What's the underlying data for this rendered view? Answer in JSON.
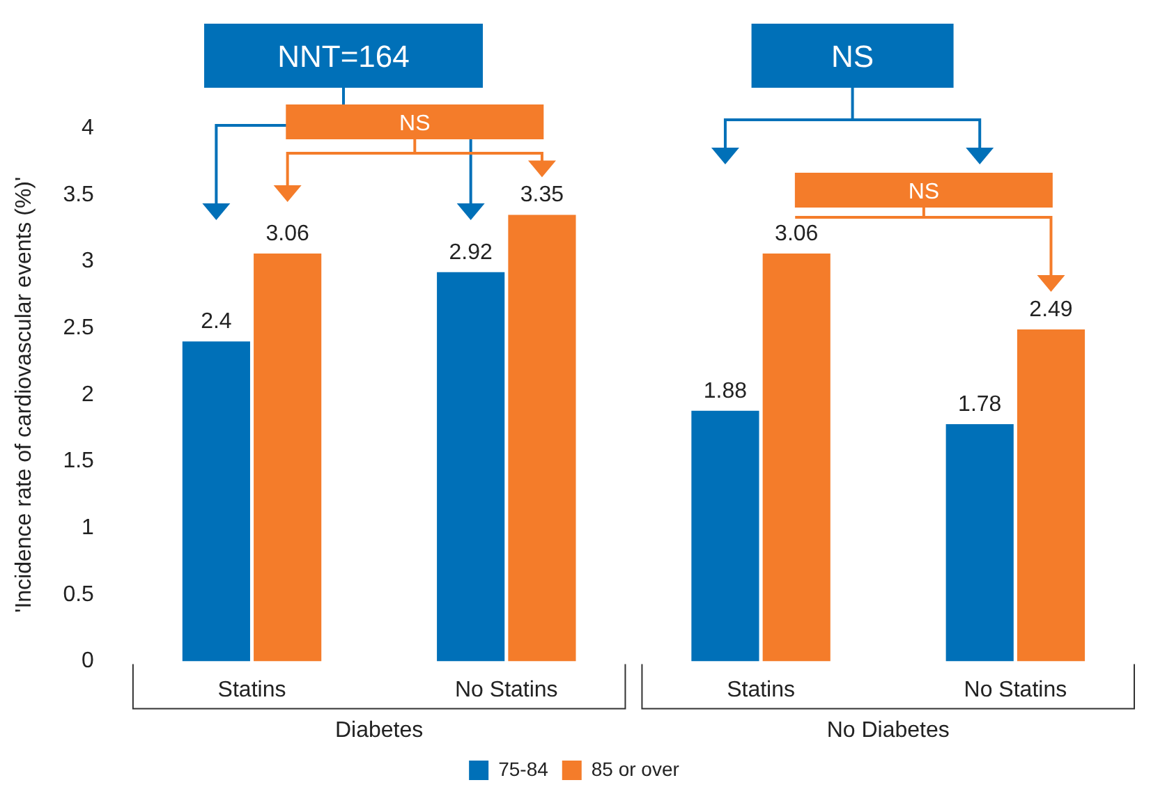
{
  "chart_data": {
    "type": "bar",
    "categories": [
      "Statins",
      "No Statins",
      "Statins",
      "No Statins"
    ],
    "series": [
      {
        "name": "75-84",
        "color": "#0070b8",
        "values": [
          2.4,
          2.92,
          1.88,
          1.78
        ]
      },
      {
        "name": "85 or over",
        "color": "#f47c2a",
        "values": [
          3.06,
          3.35,
          3.06,
          2.49
        ]
      }
    ],
    "ylabel": "'Incidence rate of cardiovascular events (%)'",
    "ylim": [
      0,
      4
    ],
    "yticks": [
      0,
      0.5,
      1,
      1.5,
      2,
      2.5,
      3,
      3.5,
      4
    ],
    "grid": false,
    "legend": "bottom",
    "data_labels": true,
    "annotations": [
      "NNT=164",
      "NS",
      "NS",
      "NS",
      "Diabetes",
      "No Diabetes"
    ]
  }
}
